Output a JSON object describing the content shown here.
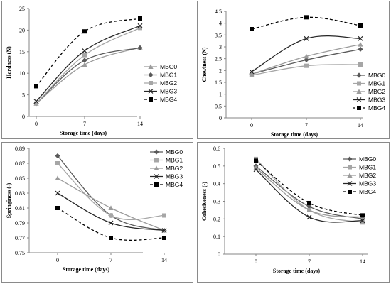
{
  "styles": {
    "MBG0": {
      "color": "#7f7f7f",
      "marker": "diamond",
      "dash": ""
    },
    "MBG1": {
      "color": "#595959",
      "marker": "diamond",
      "dash": ""
    },
    "MBG2": {
      "color": "#a6a6a6",
      "marker": "square",
      "dash": ""
    },
    "MBG3": {
      "color": "#262626",
      "marker": "x",
      "dash": ""
    },
    "MBG4": {
      "color": "#000000",
      "marker": "square",
      "dash": "4,3"
    },
    "MBG2_triangle": {
      "color": "#9b9b9b",
      "marker": "triangle",
      "dash": ""
    }
  },
  "chart_data": [
    {
      "type": "line",
      "xlabel": "Storage time (days)",
      "ylabel": "Hardness (N)",
      "categories": [
        "0",
        "7",
        "14"
      ],
      "ylim": [
        0,
        25
      ],
      "yticks": [
        "0",
        "5",
        "10",
        "15",
        "20",
        "25"
      ],
      "ytick_values": [
        0,
        5,
        10,
        15,
        20,
        25
      ],
      "legend_position": "right",
      "series": [
        {
          "name": "MBG0",
          "style": "MBG2_triangle",
          "values": [
            3.0,
            12.0,
            16.0
          ]
        },
        {
          "name": "MBG1",
          "style": "MBG1",
          "values": [
            3.0,
            13.0,
            15.9
          ]
        },
        {
          "name": "MBG2",
          "style": "MBG2",
          "values": [
            3.0,
            14.2,
            20.5
          ]
        },
        {
          "name": "MBG3",
          "style": "MBG3",
          "values": [
            3.5,
            15.2,
            21.0
          ]
        },
        {
          "name": "MBG4",
          "style": "MBG4",
          "values": [
            7.0,
            19.7,
            22.7
          ]
        }
      ]
    },
    {
      "type": "line",
      "xlabel": "Storage time (days)",
      "ylabel": "Chewiness (N)",
      "categories": [
        "0",
        "7",
        "14"
      ],
      "ylim": [
        0,
        4.5
      ],
      "yticks": [
        "0",
        "0.5",
        "1",
        "1.5",
        "2",
        "2.5",
        "3",
        "3.5",
        "4",
        "4.5"
      ],
      "ytick_values": [
        0,
        0.5,
        1,
        1.5,
        2,
        2.5,
        3,
        3.5,
        4,
        4.5
      ],
      "legend_position": "right",
      "series": [
        {
          "name": "MBG0",
          "style": "MBG1",
          "values": [
            1.85,
            2.45,
            2.9
          ]
        },
        {
          "name": "MBG1",
          "style": "MBG2",
          "values": [
            1.8,
            2.2,
            2.25
          ]
        },
        {
          "name": "MBG2",
          "style": "MBG2_triangle",
          "values": [
            1.85,
            2.6,
            3.1
          ]
        },
        {
          "name": "MBG3",
          "style": "MBG3",
          "values": [
            1.95,
            3.35,
            3.35
          ]
        },
        {
          "name": "MBG4",
          "style": "MBG4",
          "values": [
            3.75,
            4.25,
            3.9
          ]
        }
      ]
    },
    {
      "type": "line",
      "xlabel": "Storage time (days)",
      "ylabel": "Springiness (-)",
      "categories": [
        "0",
        "7",
        "14"
      ],
      "ylim": [
        0.75,
        0.89
      ],
      "yticks": [
        "0.75",
        "0.77",
        "0.79",
        "0.81",
        "0.83",
        "0.85",
        "0.87",
        "0.89"
      ],
      "ytick_values": [
        0.75,
        0.77,
        0.79,
        0.81,
        0.83,
        0.85,
        0.87,
        0.89
      ],
      "legend_position": "right",
      "series": [
        {
          "name": "MBG0",
          "style": "MBG1",
          "values": [
            0.88,
            0.8,
            0.78
          ]
        },
        {
          "name": "MBG1",
          "style": "MBG2",
          "values": [
            0.87,
            0.8,
            0.8
          ]
        },
        {
          "name": "MBG2",
          "style": "MBG2_triangle",
          "values": [
            0.85,
            0.81,
            0.78
          ]
        },
        {
          "name": "MBG3",
          "style": "MBG3",
          "values": [
            0.83,
            0.79,
            0.78
          ]
        },
        {
          "name": "MBG4",
          "style": "MBG4",
          "values": [
            0.81,
            0.77,
            0.77
          ]
        }
      ]
    },
    {
      "type": "line",
      "xlabel": "Storage time (days)",
      "ylabel": "Cohesiveness (-)",
      "categories": [
        "0",
        "7",
        "14"
      ],
      "ylim": [
        0,
        0.6
      ],
      "yticks": [
        "0",
        "0.1",
        "0.2",
        "0.3",
        "0.4",
        "0.5",
        "0.6"
      ],
      "ytick_values": [
        0,
        0.1,
        0.2,
        0.3,
        0.4,
        0.5,
        0.6
      ],
      "legend_position": "right",
      "series": [
        {
          "name": "MBG0",
          "style": "MBG1",
          "values": [
            0.5,
            0.27,
            0.2
          ]
        },
        {
          "name": "MBG1",
          "style": "MBG2",
          "values": [
            0.54,
            0.25,
            0.18
          ]
        },
        {
          "name": "MBG2",
          "style": "MBG2_triangle",
          "values": [
            0.49,
            0.25,
            0.21
          ]
        },
        {
          "name": "MBG3",
          "style": "MBG3",
          "values": [
            0.48,
            0.21,
            0.19
          ]
        },
        {
          "name": "MBG4",
          "style": "MBG4",
          "values": [
            0.53,
            0.29,
            0.22
          ]
        }
      ]
    }
  ]
}
